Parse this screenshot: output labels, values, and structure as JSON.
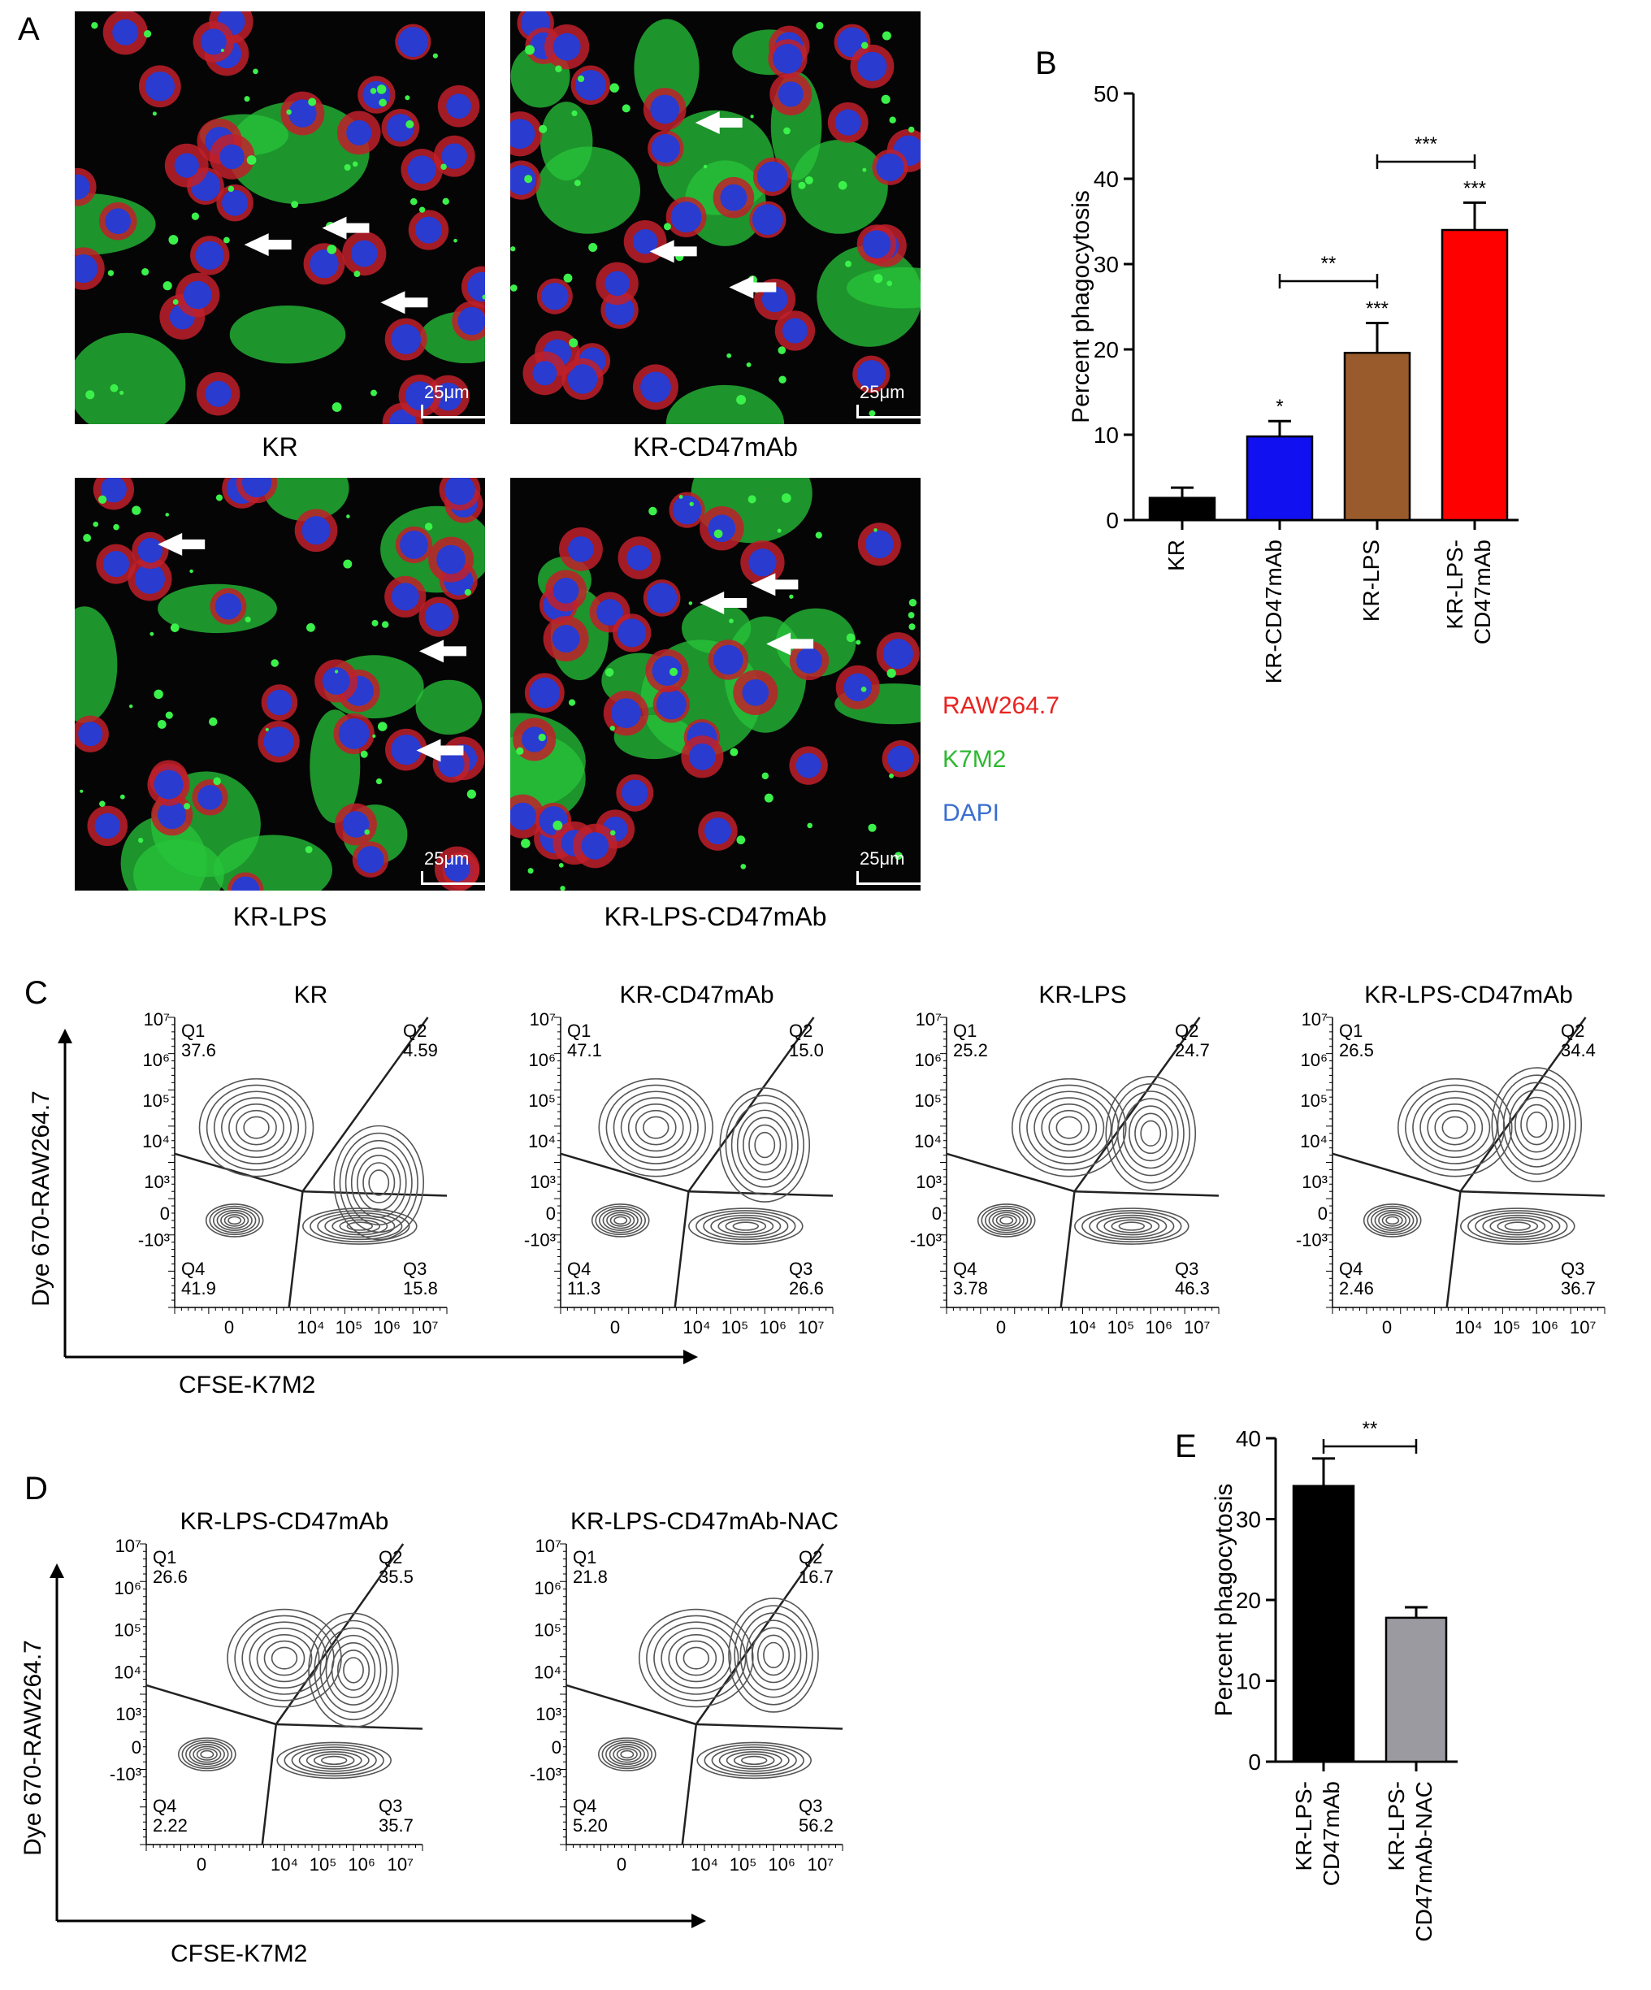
{
  "panel_labels": [
    "A",
    "B",
    "C",
    "D",
    "E"
  ],
  "panelA": {
    "images": [
      {
        "caption": "KR",
        "scalebar": "25μm"
      },
      {
        "caption": "KR-CD47mAb",
        "scalebar": "25μm"
      },
      {
        "caption": "KR-LPS",
        "scalebar": "25μm"
      },
      {
        "caption": "KR-LPS-CD47mAb",
        "scalebar": "25μm"
      }
    ],
    "legend": [
      {
        "label": "RAW264.7",
        "color": "#e8231f"
      },
      {
        "label": "K7M2",
        "color": "#2fb832"
      },
      {
        "label": "DAPI",
        "color": "#3a6ecf"
      }
    ]
  },
  "panelC": {
    "ylabel": "Dye 670-RAW264.7",
    "xlabel": "CFSE-K7M2",
    "y_ticks": [
      "10⁷",
      "10⁶",
      "10⁵",
      "10⁴",
      "10³",
      "0",
      "-10³"
    ],
    "x_ticks": [
      "0",
      "10⁴",
      "10⁵",
      "10⁶",
      "10⁷"
    ],
    "plots": [
      {
        "title": "KR",
        "q1": "37.6",
        "q2": "4.59",
        "q3": "15.8",
        "q4": "41.9"
      },
      {
        "title": "KR-CD47mAb",
        "q1": "47.1",
        "q2": "15.0",
        "q3": "26.6",
        "q4": "11.3"
      },
      {
        "title": "KR-LPS",
        "q1": "25.2",
        "q2": "24.7",
        "q3": "46.3",
        "q4": "3.78"
      },
      {
        "title": "KR-LPS-CD47mAb",
        "q1": "26.5",
        "q2": "34.4",
        "q3": "36.7",
        "q4": "2.46"
      }
    ]
  },
  "panelD": {
    "ylabel": "Dye 670-RAW264.7",
    "xlabel": "CFSE-K7M2",
    "plots": [
      {
        "title": "KR-LPS-CD47mAb",
        "q1": "26.6",
        "q2": "35.5",
        "q3": "35.7",
        "q4": "2.22"
      },
      {
        "title": "KR-LPS-CD47mAb-NAC",
        "q1": "21.8",
        "q2": "16.7",
        "q3": "56.2",
        "q4": "5.20"
      }
    ]
  },
  "quadrant_names": [
    "Q1",
    "Q2",
    "Q3",
    "Q4"
  ],
  "chart_data": [
    {
      "panel": "B",
      "type": "bar",
      "categories": [
        "KR",
        "KR-CD47mAb",
        "KR-LPS",
        "KR-LPS-CD47mAb"
      ],
      "category_labels": [
        [
          "KR"
        ],
        [
          "KR-CD47mAb"
        ],
        [
          "KR-LPS"
        ],
        [
          "KR-LPS-",
          "CD47mAb"
        ]
      ],
      "values": [
        2.6,
        9.8,
        19.6,
        34.0
      ],
      "errors": [
        1.2,
        1.8,
        3.5,
        3.2
      ],
      "colors": [
        "#000000",
        "#1010f0",
        "#9a5b2c",
        "#ff0000"
      ],
      "ylabel": "Percent phagocytosis",
      "ylim": [
        0,
        50
      ],
      "yticks": [
        0,
        10,
        20,
        30,
        40,
        50
      ],
      "significance_above": [
        "",
        "*",
        "***",
        "***"
      ],
      "brackets": [
        {
          "from": 1,
          "to": 2,
          "label": "**",
          "y": 28
        },
        {
          "from": 2,
          "to": 3,
          "label": "***",
          "y": 42
        }
      ]
    },
    {
      "panel": "E",
      "type": "bar",
      "categories": [
        "KR-LPS-CD47mAb",
        "KR-LPS-CD47mAb-NAC"
      ],
      "category_labels": [
        [
          "KR-LPS-",
          "CD47mAb"
        ],
        [
          "KR-LPS-",
          "CD47mAb-NAC"
        ]
      ],
      "values": [
        34.1,
        17.8
      ],
      "errors": [
        3.4,
        1.3
      ],
      "colors": [
        "#000000",
        "#9a9aa0"
      ],
      "ylabel": "Percent phagocytosis",
      "ylim": [
        0,
        40
      ],
      "yticks": [
        0,
        10,
        20,
        30,
        40
      ],
      "brackets": [
        {
          "from": 0,
          "to": 1,
          "label": "**",
          "y": 39
        }
      ]
    }
  ]
}
